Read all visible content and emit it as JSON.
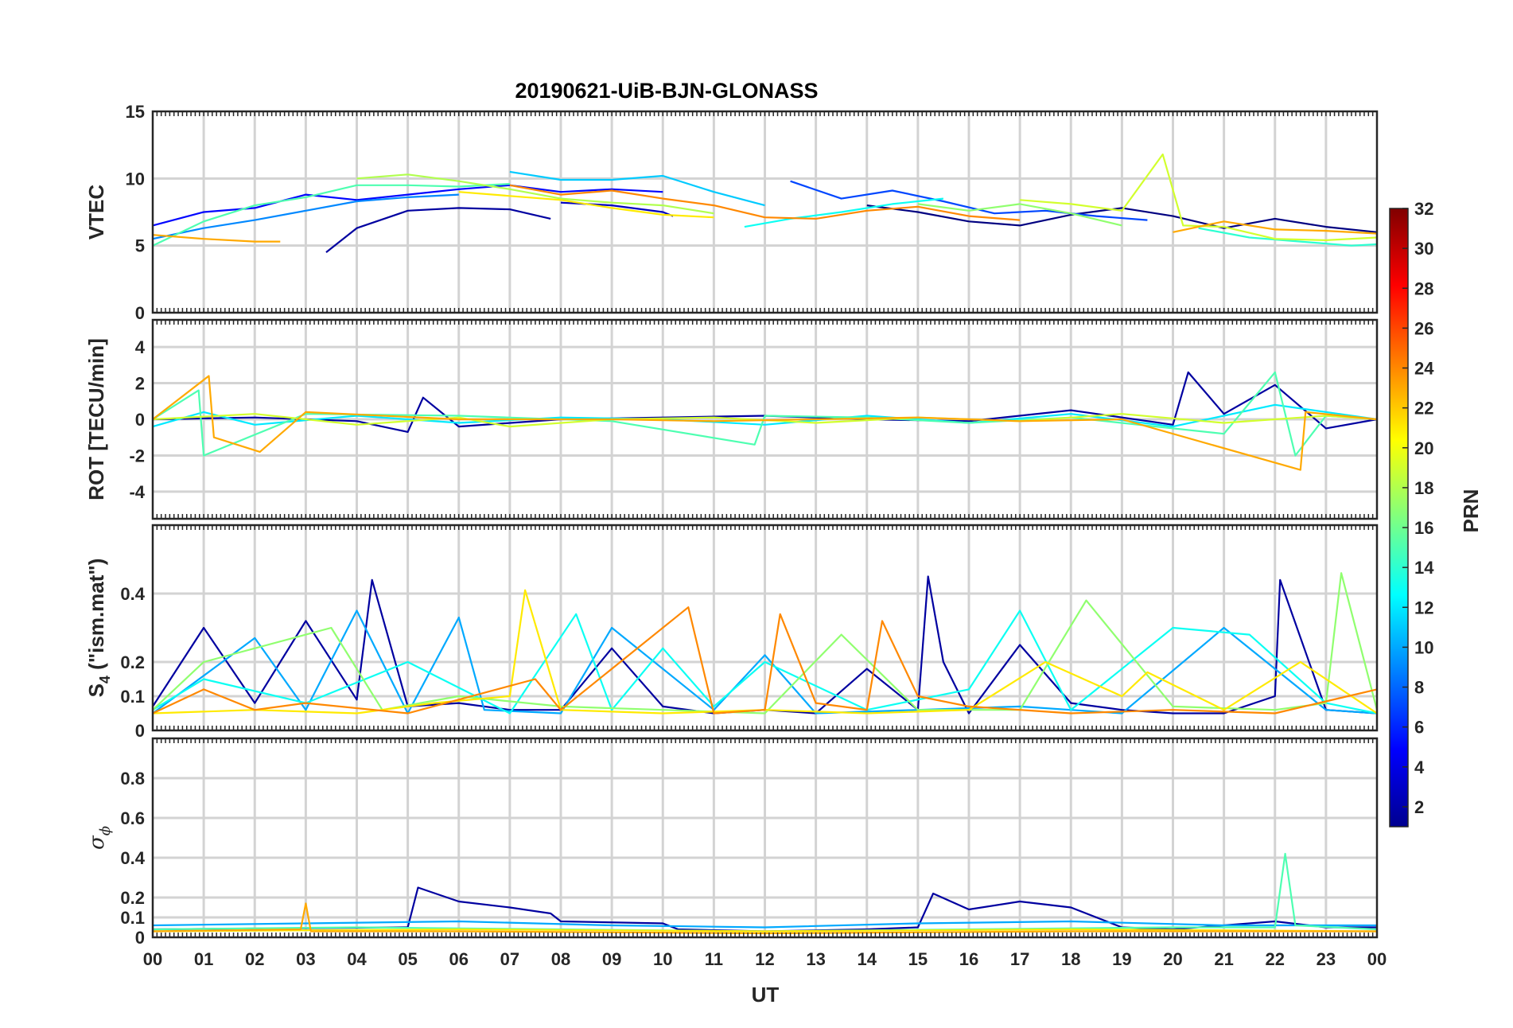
{
  "chart_data": {
    "type": "line",
    "title": "20190621-UiB-BJN-GLONASS",
    "xlabel": "UT",
    "x_tick_labels": [
      "00",
      "01",
      "02",
      "03",
      "04",
      "05",
      "06",
      "07",
      "08",
      "09",
      "10",
      "11",
      "12",
      "13",
      "14",
      "15",
      "16",
      "17",
      "18",
      "19",
      "20",
      "21",
      "22",
      "23",
      "00"
    ],
    "xlim": [
      0,
      24
    ],
    "grid": true,
    "colorbar": {
      "label": "PRN",
      "range": [
        1,
        32
      ],
      "ticks": [
        "2",
        "4",
        "6",
        "8",
        "10",
        "12",
        "14",
        "16",
        "18",
        "20",
        "22",
        "24",
        "26",
        "28",
        "30",
        "32"
      ],
      "colormap": "jet"
    },
    "panels": [
      {
        "ylabel": "VTEC",
        "ylim": [
          0,
          15
        ],
        "ytick_values": [
          0,
          5,
          10,
          15
        ],
        "ytick_labels": [
          "0",
          "5",
          "10",
          "15"
        ],
        "series": [
          {
            "prn": 2,
            "x": [
              3.4,
              4,
              5,
              6,
              7,
              7.8
            ],
            "y": [
              4.5,
              6.3,
              7.6,
              7.8,
              7.7,
              7.0
            ]
          },
          {
            "prn": 3,
            "x": [
              8,
              9,
              10,
              10.2
            ],
            "y": [
              8.2,
              8.0,
              7.5,
              7.2
            ]
          },
          {
            "prn": 1,
            "x": [
              14,
              15,
              16,
              17,
              18,
              19,
              20,
              21,
              22,
              23,
              24
            ],
            "y": [
              8.0,
              7.5,
              6.8,
              6.5,
              7.3,
              7.8,
              7.2,
              6.3,
              7.0,
              6.4,
              6.0
            ]
          },
          {
            "prn": 5,
            "x": [
              0,
              1,
              2,
              3,
              4,
              5,
              6,
              7,
              8,
              9,
              10
            ],
            "y": [
              6.5,
              7.5,
              7.8,
              8.8,
              8.4,
              8.8,
              9.2,
              9.5,
              9.0,
              9.2,
              9.0
            ]
          },
          {
            "prn": 7,
            "x": [
              12.5,
              13.5,
              14.5,
              15.5,
              16.5,
              17.5,
              18.5,
              19.5
            ],
            "y": [
              9.8,
              8.5,
              9.1,
              8.3,
              7.4,
              7.6,
              7.2,
              6.9
            ]
          },
          {
            "prn": 9,
            "x": [
              0,
              1,
              2,
              3,
              4,
              5,
              6
            ],
            "y": [
              5.5,
              6.3,
              6.9,
              7.6,
              8.3,
              8.6,
              8.8
            ]
          },
          {
            "prn": 11,
            "x": [
              7,
              8,
              9,
              10,
              11,
              12
            ],
            "y": [
              10.5,
              9.9,
              9.9,
              10.2,
              9.0,
              8.0
            ]
          },
          {
            "prn": 13,
            "x": [
              11.6,
              12.5,
              13.5,
              14.5,
              15.5
            ],
            "y": [
              6.4,
              7.0,
              7.5,
              8.1,
              8.5
            ]
          },
          {
            "prn": 14,
            "x": [
              20.5,
              21.5,
              22.5,
              23.5,
              24
            ],
            "y": [
              6.3,
              5.6,
              5.3,
              5.0,
              5.1
            ]
          },
          {
            "prn": 15,
            "x": [
              0,
              1,
              2,
              3,
              4,
              5,
              6,
              7
            ],
            "y": [
              5.0,
              6.8,
              8.0,
              8.6,
              9.5,
              9.5,
              9.4,
              9.6
            ]
          },
          {
            "prn": 17,
            "x": [
              15,
              16,
              17,
              18,
              19
            ],
            "y": [
              8.1,
              7.6,
              8.1,
              7.4,
              6.5
            ]
          },
          {
            "prn": 18,
            "x": [
              4,
              5,
              6,
              7,
              8,
              9,
              10,
              11
            ],
            "y": [
              10.0,
              10.3,
              9.8,
              9.2,
              8.5,
              8.2,
              8.0,
              7.4
            ]
          },
          {
            "prn": 19,
            "x": [
              17,
              18,
              19,
              19.8,
              20.2,
              21,
              22,
              23,
              24
            ],
            "y": [
              8.4,
              8.1,
              7.6,
              11.8,
              6.5,
              6.4,
              5.5,
              5.4,
              5.6
            ]
          },
          {
            "prn": 21,
            "x": [
              6,
              7,
              8,
              9,
              10,
              11
            ],
            "y": [
              9.0,
              8.7,
              8.4,
              7.8,
              7.3,
              7.1
            ]
          },
          {
            "prn": 23,
            "x": [
              0,
              1,
              2,
              2.5
            ],
            "y": [
              5.8,
              5.5,
              5.3,
              5.3
            ]
          },
          {
            "prn": 24,
            "x": [
              7,
              8,
              9,
              10,
              11,
              12,
              13,
              14,
              15,
              16,
              17
            ],
            "y": [
              9.5,
              8.8,
              9.1,
              8.5,
              8.0,
              7.1,
              7.0,
              7.6,
              7.9,
              7.2,
              6.9
            ]
          },
          {
            "prn": 23,
            "x": [
              20,
              21,
              22,
              23,
              24
            ],
            "y": [
              6.0,
              6.8,
              6.2,
              6.1,
              5.9
            ]
          }
        ]
      },
      {
        "ylabel": "ROT [TECU/min]",
        "ylim": [
          -5.5,
          5.5
        ],
        "ytick_values": [
          -4,
          -2,
          0,
          2,
          4
        ],
        "ytick_labels": [
          "-4",
          "-2",
          "0",
          "2",
          "4"
        ],
        "series": [
          {
            "prn": 2,
            "x": [
              0,
              2,
              4,
              5,
              5.3,
              6,
              8,
              10,
              12,
              14,
              16,
              18,
              20,
              20.3,
              21,
              22,
              23,
              24
            ],
            "y": [
              0,
              0.1,
              -0.1,
              -0.7,
              1.2,
              -0.4,
              0,
              0.1,
              0.2,
              0,
              -0.1,
              0.5,
              -0.3,
              2.6,
              0.3,
              1.9,
              -0.5,
              0
            ]
          },
          {
            "prn": 12,
            "x": [
              0,
              1,
              2,
              4,
              6,
              8,
              10,
              12,
              14,
              16,
              18,
              20,
              22,
              24
            ],
            "y": [
              -0.4,
              0.4,
              -0.3,
              0.2,
              -0.2,
              0.1,
              0,
              -0.3,
              0.2,
              -0.2,
              0.3,
              -0.4,
              0.8,
              0
            ]
          },
          {
            "prn": 15,
            "x": [
              0,
              0.9,
              1,
              3,
              6,
              9,
              11.8,
              12,
              14,
              16,
              18,
              21,
              22,
              22.4,
              23,
              24
            ],
            "y": [
              0,
              1.6,
              -2.0,
              0.3,
              0.2,
              -0.1,
              -1.4,
              0.2,
              0.1,
              -0.2,
              0.1,
              -0.8,
              2.6,
              -2.0,
              0.2,
              0
            ]
          },
          {
            "prn": 19,
            "x": [
              0,
              2,
              4,
              6,
              7,
              9,
              11,
              13,
              15,
              17,
              19,
              21,
              23,
              24
            ],
            "y": [
              0,
              0.3,
              -0.3,
              0.1,
              -0.4,
              0,
              0.1,
              -0.2,
              0.1,
              -0.1,
              0.3,
              -0.2,
              0.2,
              0
            ]
          },
          {
            "prn": 23,
            "x": [
              0,
              1.1,
              1.2,
              2.1,
              3,
              6,
              9,
              11,
              13,
              15,
              17,
              19,
              22.5,
              22.6,
              24
            ],
            "y": [
              0,
              2.4,
              -1.0,
              -1.8,
              0.4,
              0,
              0,
              -0.1,
              0,
              0.1,
              -0.1,
              0,
              -2.8,
              0.4,
              0
            ]
          }
        ]
      },
      {
        "ylabel": "S4 (\"ism.mat\")",
        "ylabel_main": "S",
        "ylabel_sub": "4",
        "ylabel_rest": " (\"ism.mat\")",
        "ylim": [
          0,
          0.6
        ],
        "ytick_values": [
          0,
          0.1,
          0.2,
          0.4
        ],
        "ytick_labels": [
          "0",
          "0.1",
          "0.2",
          "0.4"
        ],
        "series": [
          {
            "prn": 2,
            "x": [
              0,
              1,
              2,
              3,
              4,
              4.3,
              5,
              6,
              7,
              8,
              9,
              10,
              11,
              12,
              13,
              14,
              15,
              15.2,
              15.5,
              16,
              17,
              18,
              19,
              20,
              21,
              22,
              22.1,
              23,
              24
            ],
            "y": [
              0.07,
              0.3,
              0.08,
              0.32,
              0.09,
              0.44,
              0.07,
              0.08,
              0.06,
              0.06,
              0.24,
              0.07,
              0.05,
              0.06,
              0.05,
              0.18,
              0.06,
              0.45,
              0.2,
              0.05,
              0.25,
              0.08,
              0.06,
              0.05,
              0.05,
              0.1,
              0.44,
              0.06,
              0.05
            ]
          },
          {
            "prn": 10,
            "x": [
              0,
              2,
              3,
              4,
              5,
              6,
              6.5,
              8,
              9,
              11,
              12,
              13,
              15,
              17,
              19,
              21,
              23,
              24
            ],
            "y": [
              0.05,
              0.27,
              0.06,
              0.35,
              0.05,
              0.33,
              0.06,
              0.05,
              0.3,
              0.06,
              0.22,
              0.05,
              0.06,
              0.07,
              0.05,
              0.3,
              0.06,
              0.05
            ]
          },
          {
            "prn": 13,
            "x": [
              0,
              1,
              3,
              5,
              7,
              8.3,
              9,
              10,
              11,
              12,
              14,
              16,
              17,
              18,
              20,
              21.5,
              23,
              24
            ],
            "y": [
              0.06,
              0.15,
              0.08,
              0.2,
              0.05,
              0.34,
              0.06,
              0.24,
              0.07,
              0.2,
              0.06,
              0.12,
              0.35,
              0.06,
              0.3,
              0.28,
              0.08,
              0.05
            ]
          },
          {
            "prn": 17,
            "x": [
              0,
              1,
              3.5,
              4.5,
              6,
              8,
              10,
              12,
              13.5,
              15,
              17,
              18.3,
              20,
              22,
              23,
              23.3,
              24
            ],
            "y": [
              0.06,
              0.2,
              0.3,
              0.06,
              0.1,
              0.07,
              0.06,
              0.05,
              0.28,
              0.06,
              0.06,
              0.38,
              0.07,
              0.06,
              0.08,
              0.46,
              0.06
            ]
          },
          {
            "prn": 21,
            "x": [
              0,
              2,
              4,
              5.5,
              7,
              7.3,
              8,
              10,
              12,
              14,
              16,
              17.5,
              19,
              19.5,
              21,
              22.5,
              24
            ],
            "y": [
              0.05,
              0.06,
              0.05,
              0.08,
              0.1,
              0.41,
              0.06,
              0.05,
              0.06,
              0.05,
              0.06,
              0.2,
              0.1,
              0.17,
              0.06,
              0.2,
              0.05
            ]
          },
          {
            "prn": 24,
            "x": [
              0,
              1,
              2,
              3,
              5,
              7.5,
              8,
              9,
              10.5,
              11,
              12,
              12.3,
              13,
              14,
              14.3,
              15,
              16,
              18,
              20,
              22,
              24
            ],
            "y": [
              0.05,
              0.12,
              0.06,
              0.08,
              0.05,
              0.15,
              0.06,
              0.18,
              0.36,
              0.05,
              0.06,
              0.34,
              0.08,
              0.06,
              0.32,
              0.1,
              0.07,
              0.05,
              0.06,
              0.05,
              0.12
            ]
          }
        ]
      },
      {
        "ylabel": "σ ϕ",
        "ylabel_main": "σ",
        "ylabel_sub": "ϕ",
        "ylim": [
          0,
          1.0
        ],
        "ytick_values": [
          0,
          0.1,
          0.2,
          0.4,
          0.6,
          0.8
        ],
        "ytick_labels": [
          "0",
          "0.1",
          "0.2",
          "0.4",
          "0.6",
          "0.8"
        ],
        "series": [
          {
            "prn": 2,
            "x": [
              0,
              5,
              5.2,
              6,
              7,
              7.8,
              8,
              10,
              10.3,
              12,
              14,
              15,
              15.3,
              16,
              17,
              18,
              19,
              20,
              22,
              23,
              24
            ],
            "y": [
              0.04,
              0.05,
              0.25,
              0.18,
              0.15,
              0.12,
              0.08,
              0.07,
              0.04,
              0.03,
              0.04,
              0.05,
              0.22,
              0.14,
              0.18,
              0.15,
              0.05,
              0.04,
              0.08,
              0.05,
              0.05
            ]
          },
          {
            "prn": 10,
            "x": [
              0,
              3,
              6,
              9,
              12,
              15,
              18,
              21,
              24
            ],
            "y": [
              0.06,
              0.07,
              0.08,
              0.06,
              0.05,
              0.07,
              0.08,
              0.06,
              0.06
            ]
          },
          {
            "prn": 15,
            "x": [
              0,
              4,
              8,
              12,
              16,
              20,
              22,
              22.2,
              22.4,
              24
            ],
            "y": [
              0.04,
              0.05,
              0.04,
              0.03,
              0.04,
              0.05,
              0.05,
              0.42,
              0.06,
              0.04
            ]
          },
          {
            "prn": 21,
            "x": [
              0,
              6,
              12,
              18,
              24
            ],
            "y": [
              0.03,
              0.04,
              0.03,
              0.04,
              0.03
            ]
          },
          {
            "prn": 23,
            "x": [
              0,
              2.9,
              3,
              3.1,
              6,
              12,
              18,
              24
            ],
            "y": [
              0.03,
              0.04,
              0.17,
              0.03,
              0.03,
              0.02,
              0.03,
              0.03
            ]
          }
        ]
      }
    ]
  }
}
